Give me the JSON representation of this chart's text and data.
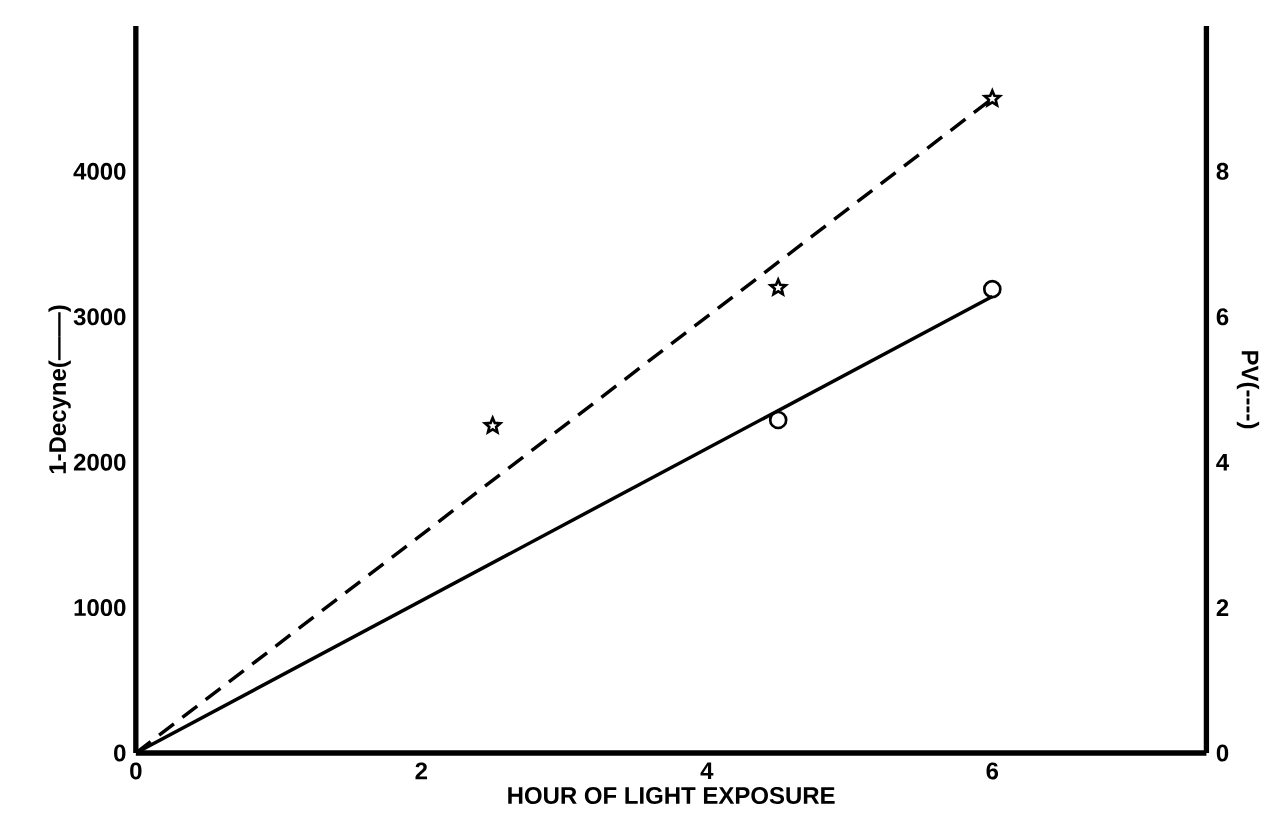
{
  "chart_data": {
    "type": "scatter",
    "xlabel": "HOUR OF LIGHT EXPOSURE",
    "ylabel": "1-Decyne(——)",
    "y2label": "PV(----)",
    "xlim": [
      0,
      7.5
    ],
    "xticks": [
      0,
      2,
      4,
      6
    ],
    "ylim": [
      0,
      5000
    ],
    "yticks": [
      0,
      1000,
      2000,
      3000,
      4000
    ],
    "y2lim": [
      0,
      10
    ],
    "y2ticks": [
      0,
      2,
      4,
      6,
      8
    ],
    "grid": false,
    "series": [
      {
        "color": "#000000",
        "marker": "circle",
        "x": [
          4.5,
          6
        ],
        "values": [
          2290,
          3190
        ]
      },
      {
        "type": "line",
        "color": "#000000",
        "marker": "none",
        "line_style": "solid",
        "x": [
          0,
          6
        ],
        "values": [
          0,
          3140
        ]
      },
      {
        "color": "#000000",
        "marker": "star",
        "axis": "y2",
        "x": [
          2.5,
          4.5,
          6
        ],
        "values": [
          4.5,
          6.4,
          9.0
        ]
      },
      {
        "type": "line",
        "color": "#000000",
        "marker": "none",
        "line_style": "dashed",
        "axis": "y2",
        "x": [
          0,
          6
        ],
        "values": [
          0,
          9.0
        ]
      }
    ]
  }
}
